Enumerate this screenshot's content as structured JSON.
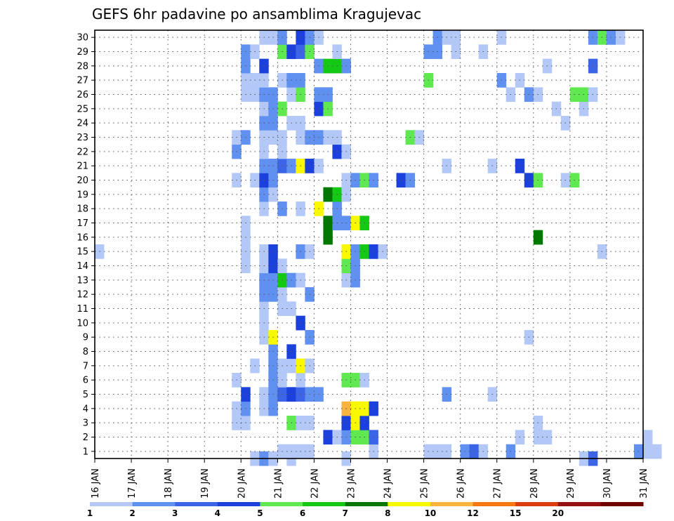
{
  "chart_data": {
    "type": "heatmap",
    "title": "GEFS 6hr padavine po ansamblima Kragujevac",
    "xlabel": "",
    "ylabel": "",
    "x_ticks": [
      "16 JAN",
      "17 JAN",
      "18 JAN",
      "19 JAN",
      "20 JAN",
      "21 JAN",
      "22 JAN",
      "23 JAN",
      "24 JAN",
      "25 JAN",
      "26 JAN",
      "27 JAN",
      "28 JAN",
      "29 JAN",
      "30 JAN",
      "31 JAN"
    ],
    "x_range_days": [
      16,
      31
    ],
    "y_ticks": [
      1,
      2,
      3,
      4,
      5,
      6,
      7,
      8,
      9,
      10,
      11,
      12,
      13,
      14,
      15,
      16,
      17,
      18,
      19,
      20,
      21,
      22,
      23,
      24,
      25,
      26,
      27,
      28,
      29,
      30
    ],
    "y_range": [
      0,
      30
    ],
    "grid": true,
    "grid_style": "dotted",
    "colorbar": {
      "labels": [
        "1",
        "2",
        "3",
        "4",
        "5",
        "6",
        "7",
        "8",
        "10",
        "12",
        "15",
        "20"
      ],
      "colors": [
        "#b4c8f8",
        "#6090f0",
        "#3c64e6",
        "#1c40dc",
        "#60e850",
        "#14c814",
        "#007800",
        "#f8f800",
        "#f8b43c",
        "#f87810",
        "#dc3c10",
        "#961010",
        "#6e0000"
      ]
    },
    "x_unit": "6-hour steps from 16 JAN 00Z",
    "z_unit": "precipitation class index (0-based into colorbar colors)",
    "cells": [
      [
        1,
        20,
        0
      ],
      [
        1,
        21,
        0
      ],
      [
        1,
        22,
        0
      ],
      [
        1,
        23,
        0
      ],
      [
        1,
        30,
        0
      ],
      [
        1,
        36,
        0
      ],
      [
        1,
        37,
        0
      ],
      [
        1,
        38,
        0
      ],
      [
        1,
        40,
        1
      ],
      [
        1,
        41,
        2
      ],
      [
        1,
        42,
        0
      ],
      [
        1,
        45,
        1
      ],
      [
        1,
        59,
        1
      ],
      [
        1,
        60,
        0
      ],
      [
        1,
        61,
        0
      ],
      [
        2,
        25,
        3
      ],
      [
        2,
        26,
        0
      ],
      [
        2,
        27,
        1
      ],
      [
        2,
        28,
        4
      ],
      [
        2,
        29,
        4
      ],
      [
        2,
        30,
        2
      ],
      [
        2,
        46,
        0
      ],
      [
        2,
        48,
        0
      ],
      [
        2,
        49,
        0
      ],
      [
        2,
        60,
        0
      ],
      [
        3,
        15,
        0
      ],
      [
        3,
        16,
        0
      ],
      [
        3,
        21,
        4
      ],
      [
        3,
        22,
        0
      ],
      [
        3,
        23,
        0
      ],
      [
        3,
        27,
        3
      ],
      [
        3,
        28,
        7
      ],
      [
        3,
        29,
        3
      ],
      [
        3,
        48,
        0
      ],
      [
        4,
        15,
        0
      ],
      [
        4,
        16,
        1
      ],
      [
        4,
        18,
        0
      ],
      [
        4,
        19,
        1
      ],
      [
        4,
        27,
        8
      ],
      [
        4,
        28,
        7
      ],
      [
        4,
        29,
        7
      ],
      [
        4,
        30,
        3
      ],
      [
        5,
        16,
        3
      ],
      [
        5,
        18,
        0
      ],
      [
        5,
        19,
        1
      ],
      [
        5,
        20,
        2
      ],
      [
        5,
        21,
        3
      ],
      [
        5,
        22,
        2
      ],
      [
        5,
        23,
        1
      ],
      [
        5,
        24,
        1
      ],
      [
        5,
        38,
        1
      ],
      [
        5,
        43,
        0
      ],
      [
        6,
        15,
        0
      ],
      [
        6,
        19,
        1
      ],
      [
        6,
        20,
        0
      ],
      [
        6,
        22,
        0
      ],
      [
        6,
        27,
        4
      ],
      [
        6,
        28,
        4
      ],
      [
        6,
        29,
        0
      ],
      [
        7,
        17,
        0
      ],
      [
        7,
        19,
        1
      ],
      [
        7,
        20,
        0
      ],
      [
        7,
        21,
        0
      ],
      [
        7,
        22,
        7
      ],
      [
        7,
        23,
        0
      ],
      [
        8,
        19,
        1
      ],
      [
        8,
        21,
        3
      ],
      [
        9,
        18,
        0
      ],
      [
        9,
        19,
        7
      ],
      [
        9,
        23,
        1
      ],
      [
        9,
        47,
        0
      ],
      [
        10,
        18,
        0
      ],
      [
        10,
        22,
        3
      ],
      [
        11,
        18,
        0
      ],
      [
        11,
        20,
        0
      ],
      [
        11,
        21,
        0
      ],
      [
        12,
        18,
        1
      ],
      [
        12,
        19,
        1
      ],
      [
        12,
        20,
        0
      ],
      [
        12,
        23,
        1
      ],
      [
        13,
        18,
        1
      ],
      [
        13,
        19,
        1
      ],
      [
        13,
        20,
        5
      ],
      [
        13,
        21,
        1
      ],
      [
        13,
        22,
        0
      ],
      [
        13,
        27,
        0
      ],
      [
        13,
        28,
        1
      ],
      [
        14,
        16,
        0
      ],
      [
        14,
        18,
        0
      ],
      [
        14,
        19,
        3
      ],
      [
        14,
        20,
        0
      ],
      [
        14,
        27,
        4
      ],
      [
        14,
        28,
        1
      ],
      [
        15,
        0,
        0
      ],
      [
        15,
        16,
        0
      ],
      [
        15,
        18,
        0
      ],
      [
        15,
        19,
        3
      ],
      [
        15,
        22,
        1
      ],
      [
        15,
        23,
        0
      ],
      [
        15,
        27,
        7
      ],
      [
        15,
        28,
        1
      ],
      [
        15,
        29,
        5
      ],
      [
        15,
        30,
        3
      ],
      [
        15,
        31,
        0
      ],
      [
        15,
        55,
        0
      ],
      [
        16,
        16,
        0
      ],
      [
        16,
        25,
        6
      ],
      [
        16,
        48,
        6
      ],
      [
        17,
        16,
        0
      ],
      [
        17,
        25,
        6
      ],
      [
        17,
        26,
        1
      ],
      [
        17,
        27,
        1
      ],
      [
        17,
        28,
        7
      ],
      [
        17,
        29,
        5
      ],
      [
        18,
        18,
        0
      ],
      [
        18,
        20,
        1
      ],
      [
        18,
        22,
        0
      ],
      [
        18,
        24,
        7
      ],
      [
        18,
        26,
        1
      ],
      [
        19,
        18,
        1
      ],
      [
        19,
        19,
        0
      ],
      [
        19,
        25,
        6
      ],
      [
        19,
        26,
        5
      ],
      [
        19,
        27,
        0
      ],
      [
        20,
        15,
        0
      ],
      [
        20,
        17,
        0
      ],
      [
        20,
        18,
        3
      ],
      [
        20,
        19,
        1
      ],
      [
        20,
        27,
        0
      ],
      [
        20,
        28,
        1
      ],
      [
        20,
        29,
        4
      ],
      [
        20,
        30,
        1
      ],
      [
        20,
        33,
        3
      ],
      [
        20,
        34,
        1
      ],
      [
        20,
        47,
        3
      ],
      [
        20,
        48,
        4
      ],
      [
        20,
        51,
        0
      ],
      [
        20,
        52,
        4
      ],
      [
        21,
        18,
        1
      ],
      [
        21,
        19,
        1
      ],
      [
        21,
        20,
        2
      ],
      [
        21,
        21,
        1
      ],
      [
        21,
        22,
        7
      ],
      [
        21,
        23,
        3
      ],
      [
        21,
        24,
        0
      ],
      [
        21,
        38,
        0
      ],
      [
        21,
        43,
        0
      ],
      [
        21,
        46,
        3
      ],
      [
        22,
        15,
        1
      ],
      [
        22,
        18,
        0
      ],
      [
        22,
        20,
        0
      ],
      [
        22,
        26,
        3
      ],
      [
        22,
        27,
        0
      ],
      [
        23,
        15,
        0
      ],
      [
        23,
        16,
        1
      ],
      [
        23,
        18,
        0
      ],
      [
        23,
        19,
        0
      ],
      [
        23,
        20,
        0
      ],
      [
        23,
        22,
        0
      ],
      [
        23,
        23,
        1
      ],
      [
        23,
        24,
        1
      ],
      [
        23,
        25,
        0
      ],
      [
        23,
        26,
        0
      ],
      [
        23,
        34,
        4
      ],
      [
        23,
        35,
        0
      ],
      [
        24,
        18,
        1
      ],
      [
        24,
        19,
        1
      ],
      [
        24,
        21,
        0
      ],
      [
        24,
        22,
        0
      ],
      [
        24,
        51,
        0
      ],
      [
        25,
        18,
        0
      ],
      [
        25,
        19,
        1
      ],
      [
        25,
        20,
        4
      ],
      [
        25,
        24,
        3
      ],
      [
        25,
        25,
        4
      ],
      [
        25,
        50,
        0
      ],
      [
        25,
        53,
        0
      ],
      [
        26,
        16,
        0
      ],
      [
        26,
        17,
        0
      ],
      [
        26,
        18,
        1
      ],
      [
        26,
        19,
        1
      ],
      [
        26,
        21,
        0
      ],
      [
        26,
        22,
        4
      ],
      [
        26,
        24,
        1
      ],
      [
        26,
        25,
        1
      ],
      [
        26,
        45,
        0
      ],
      [
        26,
        47,
        1
      ],
      [
        26,
        48,
        0
      ],
      [
        26,
        52,
        4
      ],
      [
        26,
        53,
        4
      ],
      [
        26,
        54,
        0
      ],
      [
        27,
        16,
        0
      ],
      [
        27,
        17,
        0
      ],
      [
        27,
        18,
        0
      ],
      [
        27,
        20,
        0
      ],
      [
        27,
        21,
        1
      ],
      [
        27,
        22,
        1
      ],
      [
        27,
        36,
        4
      ],
      [
        27,
        44,
        1
      ],
      [
        27,
        46,
        0
      ],
      [
        28,
        16,
        1
      ],
      [
        28,
        18,
        3
      ],
      [
        28,
        24,
        1
      ],
      [
        28,
        25,
        5
      ],
      [
        28,
        26,
        5
      ],
      [
        28,
        27,
        1
      ],
      [
        28,
        49,
        0
      ],
      [
        28,
        54,
        2
      ],
      [
        29,
        16,
        1
      ],
      [
        29,
        17,
        0
      ],
      [
        29,
        20,
        4
      ],
      [
        29,
        21,
        3
      ],
      [
        29,
        22,
        2
      ],
      [
        29,
        23,
        4
      ],
      [
        29,
        26,
        0
      ],
      [
        29,
        36,
        1
      ],
      [
        29,
        37,
        1
      ],
      [
        29,
        39,
        0
      ],
      [
        29,
        42,
        0
      ],
      [
        30,
        18,
        0
      ],
      [
        30,
        19,
        0
      ],
      [
        30,
        20,
        1
      ],
      [
        30,
        22,
        3
      ],
      [
        30,
        23,
        1
      ],
      [
        30,
        24,
        0
      ],
      [
        30,
        37,
        1
      ],
      [
        30,
        38,
        0
      ],
      [
        30,
        39,
        0
      ],
      [
        30,
        44,
        0
      ],
      [
        30,
        54,
        1
      ],
      [
        30,
        55,
        4
      ],
      [
        30,
        56,
        1
      ],
      [
        30,
        57,
        0
      ],
      [
        0,
        17,
        0
      ],
      [
        0,
        18,
        1
      ],
      [
        0,
        19,
        0
      ],
      [
        0,
        21,
        0
      ],
      [
        0,
        53,
        0
      ],
      [
        0,
        54,
        2
      ],
      [
        0,
        27,
        0
      ]
    ]
  }
}
